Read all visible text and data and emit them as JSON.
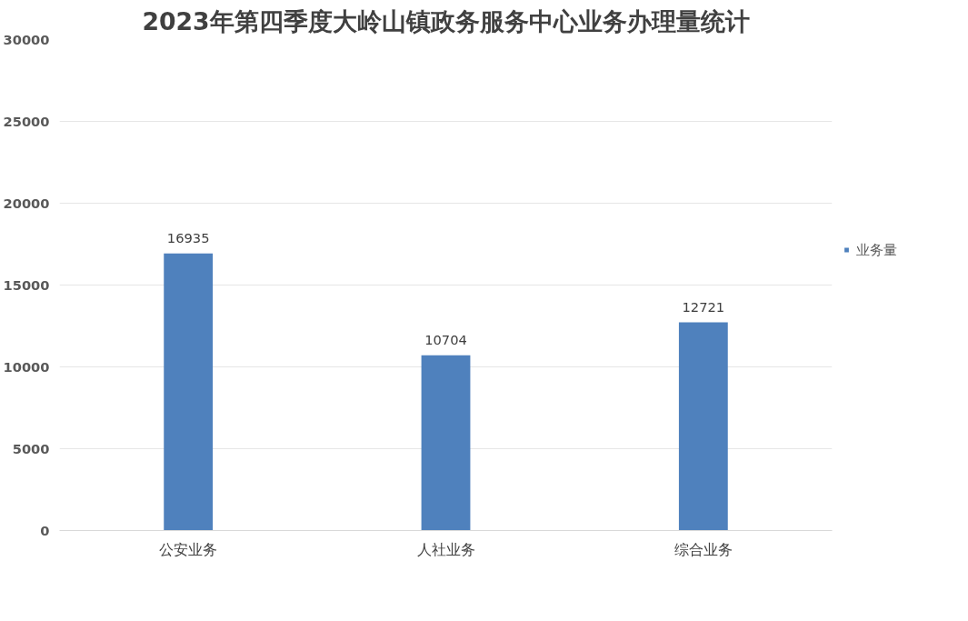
{
  "chart_data": {
    "type": "bar",
    "title": "2023年第四季度大岭山镇政务服务中心业务办理量统计",
    "categories": [
      "公安业务",
      "人社业务",
      "综合业务"
    ],
    "series": [
      {
        "name": "业务量",
        "color": "#4f81bd",
        "values": [
          16935,
          10704,
          12721
        ]
      }
    ],
    "ylim": [
      0,
      30000
    ],
    "yticks": [
      0,
      5000,
      10000,
      15000,
      20000,
      25000,
      30000
    ],
    "grid": "y",
    "legend": "right",
    "data_labels": true
  }
}
